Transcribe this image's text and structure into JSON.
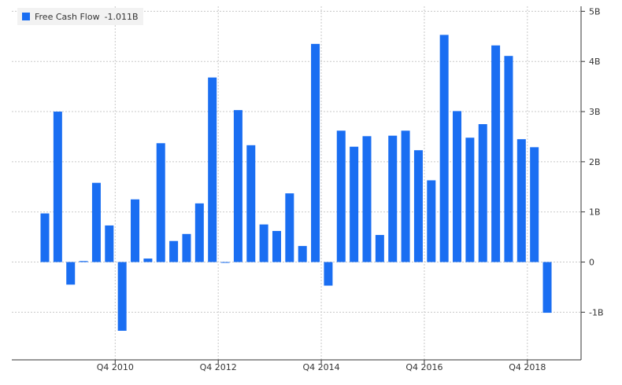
{
  "chart_data": {
    "type": "bar",
    "series": [
      {
        "name": "Free Cash Flow",
        "color": "#1a6ef2",
        "values": [
          0.97,
          3.0,
          -0.45,
          0.02,
          1.58,
          0.73,
          -1.37,
          1.25,
          0.07,
          2.37,
          0.42,
          0.56,
          1.17,
          3.68,
          -0.01,
          3.03,
          2.33,
          0.75,
          0.62,
          1.37,
          0.32,
          4.35,
          -0.47,
          2.62,
          2.3,
          2.51,
          0.54,
          2.52,
          2.62,
          2.23,
          1.63,
          4.53,
          3.01,
          2.48,
          2.75,
          4.32,
          4.11,
          2.45,
          2.29,
          -1.011
        ]
      }
    ],
    "legend": {
      "label": "Free Cash Flow",
      "value": "-1.011B"
    },
    "xtick_labels": [
      "Q4 2010",
      "Q4 2012",
      "Q4 2014",
      "Q4 2016",
      "Q4 2018"
    ],
    "xtick_index": [
      5,
      13,
      21,
      29,
      37
    ],
    "yticks": [
      -1,
      0,
      1,
      2,
      3,
      4,
      5
    ],
    "ytick_labels": [
      "-1B",
      "0",
      "1B",
      "2B",
      "3B",
      "4B",
      "5B"
    ],
    "ylim": [
      -1.95,
      5.1
    ],
    "grid": true,
    "legend_position": "top-left",
    "axis_position": "right",
    "unit": "B"
  }
}
